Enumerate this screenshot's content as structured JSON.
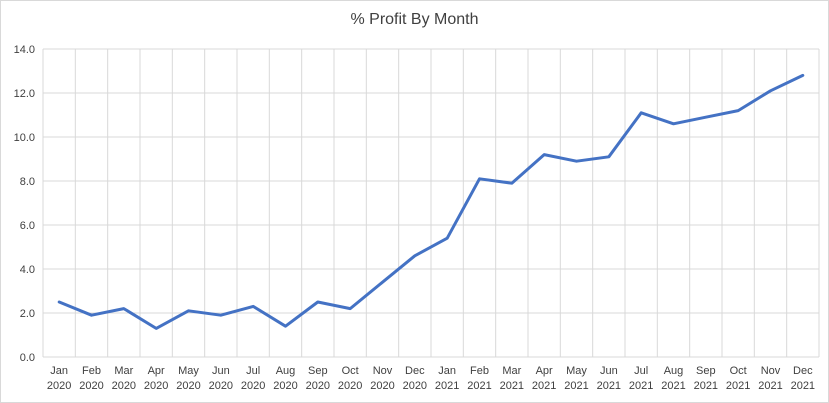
{
  "chart_data": {
    "type": "line",
    "title": "% Profit By Month",
    "xlabel": "",
    "ylabel": "",
    "ylim": [
      0,
      14
    ],
    "y_ticks": [
      "0.0",
      "2.0",
      "4.0",
      "6.0",
      "8.0",
      "10.0",
      "12.0",
      "14.0"
    ],
    "grid": true,
    "categories": [
      [
        "Jan",
        "2020"
      ],
      [
        "Feb",
        "2020"
      ],
      [
        "Mar",
        "2020"
      ],
      [
        "Apr",
        "2020"
      ],
      [
        "May",
        "2020"
      ],
      [
        "Jun",
        "2020"
      ],
      [
        "Jul",
        "2020"
      ],
      [
        "Aug",
        "2020"
      ],
      [
        "Sep",
        "2020"
      ],
      [
        "Oct",
        "2020"
      ],
      [
        "Nov",
        "2020"
      ],
      [
        "Dec",
        "2020"
      ],
      [
        "Jan",
        "2021"
      ],
      [
        "Feb",
        "2021"
      ],
      [
        "Mar",
        "2021"
      ],
      [
        "Apr",
        "2021"
      ],
      [
        "May",
        "2021"
      ],
      [
        "Jun",
        "2021"
      ],
      [
        "Jul",
        "2021"
      ],
      [
        "Aug",
        "2021"
      ],
      [
        "Sep",
        "2021"
      ],
      [
        "Oct",
        "2021"
      ],
      [
        "Nov",
        "2021"
      ],
      [
        "Dec",
        "2021"
      ]
    ],
    "series": [
      {
        "values": [
          2.5,
          1.9,
          2.2,
          1.3,
          2.1,
          1.9,
          2.3,
          1.4,
          2.5,
          2.2,
          3.4,
          4.6,
          5.4,
          8.1,
          7.9,
          9.2,
          8.9,
          9.1,
          11.1,
          10.6,
          10.9,
          11.2,
          12.1,
          12.8
        ],
        "color": "#4472c4"
      }
    ],
    "colors": {
      "grid": "#d9d9d9",
      "text": "#404040",
      "line": "#4472c4"
    }
  }
}
